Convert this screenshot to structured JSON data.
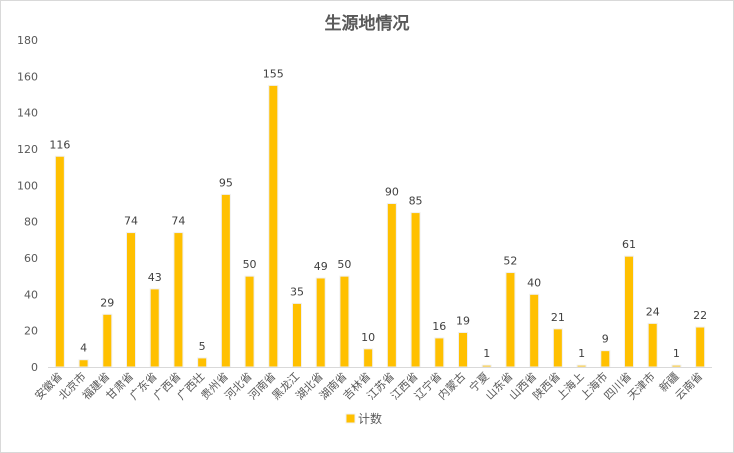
{
  "chart_data": {
    "type": "bar",
    "title": "生源地情况",
    "xlabel": "",
    "ylabel": "",
    "ylim": [
      0,
      180
    ],
    "yticks": [
      0,
      20,
      40,
      60,
      80,
      100,
      120,
      140,
      160,
      180
    ],
    "grid": false,
    "legend_position": "bottom",
    "bar_color": "#FFC000",
    "bar_edge_color": "#F0F0F0",
    "categories": [
      "安徽省",
      "北京市",
      "福建省",
      "甘肃省",
      "广东省",
      "广西省",
      "广西壮",
      "贵州省",
      "河北省",
      "河南省",
      "黑龙江",
      "湖北省",
      "湖南省",
      "吉林省",
      "江苏省",
      "江西省",
      "辽宁省",
      "内蒙古",
      "宁夏",
      "山东省",
      "山西省",
      "陕西省",
      "上海上",
      "上海市",
      "四川省",
      "天津市",
      "新疆",
      "云南省"
    ],
    "series": [
      {
        "name": "计数",
        "values": [
          116,
          4,
          29,
          74,
          43,
          74,
          5,
          95,
          50,
          155,
          35,
          49,
          50,
          10,
          90,
          85,
          16,
          19,
          1,
          52,
          40,
          21,
          1,
          9,
          61,
          24,
          1,
          22
        ]
      }
    ]
  }
}
